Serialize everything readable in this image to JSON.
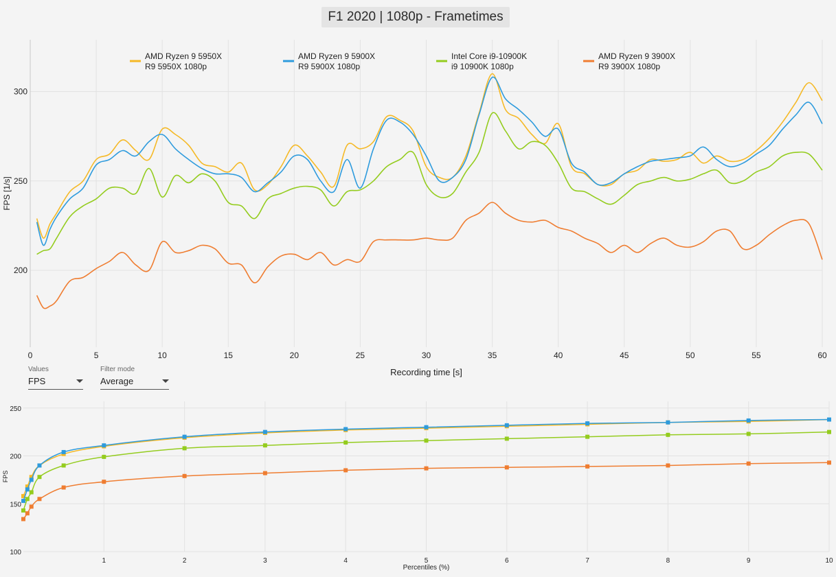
{
  "title": "F1 2020 | 1080p - Frametimes",
  "colors": {
    "gold": "#F5B926",
    "blue": "#2E9BDD",
    "green": "#94CC1E",
    "orange": "#EF7D31",
    "grid": "#e2e2e2"
  },
  "legend": [
    {
      "line1": "AMD Ryzen 9 5950X",
      "line2": "R9 5950X 1080p",
      "color": "#F5B926"
    },
    {
      "line1": "AMD Ryzen 9 5900X",
      "line2": "R9 5900X 1080p",
      "color": "#2E9BDD"
    },
    {
      "line1": "Intel Core i9-10900K",
      "line2": "i9 10900K 1080p",
      "color": "#94CC1E"
    },
    {
      "line1": "AMD Ryzen 9 3900X",
      "line2": "R9 3900X 1080p",
      "color": "#EF7D31"
    }
  ],
  "controls": {
    "values_label": "Values",
    "values_value": "FPS",
    "filter_label": "Filter mode",
    "filter_value": "Average"
  },
  "chart_data": [
    {
      "type": "line",
      "xlabel": "Recording time [s]",
      "ylabel": "FPS [1/s]",
      "xlim": [
        0,
        60
      ],
      "ylim": [
        157,
        329
      ],
      "xticks": [
        0,
        5,
        10,
        15,
        20,
        25,
        30,
        35,
        40,
        45,
        50,
        55,
        60
      ],
      "yticks": [
        200,
        250,
        300
      ],
      "series": [
        {
          "name": "AMD Ryzen 9 5950X",
          "color": "#F5B926",
          "x": [
            0.5,
            1,
            1.5,
            2,
            3,
            4,
            5,
            6,
            7,
            8,
            9,
            10,
            11,
            12,
            13,
            14,
            15,
            16,
            17,
            18,
            19,
            20,
            21,
            22,
            23,
            24,
            25,
            26,
            27,
            28,
            29,
            30,
            31,
            32,
            33,
            34,
            35,
            36,
            37,
            38,
            39,
            40,
            41,
            42,
            43,
            44,
            45,
            46,
            47,
            48,
            49,
            50,
            51,
            52,
            53,
            54,
            55,
            56,
            57,
            58,
            59,
            60
          ],
          "y": [
            229,
            218,
            226,
            232,
            244,
            250,
            262,
            265,
            273,
            267,
            262,
            279,
            276,
            270,
            260,
            258,
            255,
            260,
            245,
            248,
            258,
            270,
            264,
            255,
            247,
            270,
            268,
            272,
            286,
            284,
            278,
            258,
            252,
            252,
            264,
            288,
            310,
            290,
            285,
            276,
            271,
            282,
            258,
            254,
            248,
            248,
            254,
            256,
            262,
            261,
            262,
            266,
            260,
            264,
            261,
            262,
            267,
            274,
            283,
            294,
            305,
            295
          ]
        },
        {
          "name": "AMD Ryzen 9 5900X",
          "color": "#2E9BDD",
          "x": [
            0.5,
            1,
            1.5,
            2,
            3,
            4,
            5,
            6,
            7,
            8,
            9,
            10,
            11,
            12,
            13,
            14,
            15,
            16,
            17,
            18,
            19,
            20,
            21,
            22,
            23,
            24,
            25,
            26,
            27,
            28,
            29,
            30,
            31,
            32,
            33,
            34,
            35,
            36,
            37,
            38,
            39,
            40,
            41,
            42,
            43,
            44,
            45,
            46,
            47,
            48,
            49,
            50,
            51,
            52,
            53,
            54,
            55,
            56,
            57,
            58,
            59,
            60
          ],
          "y": [
            227,
            214,
            223,
            230,
            240,
            246,
            259,
            262,
            267,
            264,
            272,
            276,
            268,
            262,
            257,
            254,
            254,
            252,
            244,
            249,
            255,
            264,
            262,
            250,
            244,
            262,
            246,
            268,
            284,
            283,
            276,
            264,
            250,
            252,
            262,
            287,
            308,
            296,
            290,
            283,
            275,
            279,
            260,
            255,
            248,
            249,
            254,
            258,
            261,
            262,
            263,
            264,
            269,
            262,
            258,
            260,
            265,
            270,
            279,
            287,
            294,
            282
          ]
        },
        {
          "name": "Intel Core i9-10900K",
          "color": "#94CC1E",
          "x": [
            0.5,
            1,
            1.5,
            2,
            3,
            4,
            5,
            6,
            7,
            8,
            9,
            10,
            11,
            12,
            13,
            14,
            15,
            16,
            17,
            18,
            19,
            20,
            21,
            22,
            23,
            24,
            25,
            26,
            27,
            28,
            29,
            30,
            31,
            32,
            33,
            34,
            35,
            36,
            37,
            38,
            39,
            40,
            41,
            42,
            43,
            44,
            45,
            46,
            47,
            48,
            49,
            50,
            51,
            52,
            53,
            54,
            55,
            56,
            57,
            58,
            59,
            60
          ],
          "y": [
            209,
            211,
            212,
            218,
            230,
            236,
            240,
            246,
            246,
            243,
            257,
            241,
            253,
            249,
            254,
            250,
            238,
            236,
            229,
            240,
            243,
            246,
            247,
            245,
            236,
            244,
            245,
            250,
            258,
            262,
            266,
            248,
            241,
            243,
            255,
            266,
            288,
            278,
            268,
            272,
            270,
            260,
            246,
            244,
            240,
            237,
            242,
            248,
            250,
            252,
            250,
            251,
            254,
            256,
            249,
            250,
            255,
            258,
            264,
            266,
            265,
            256
          ]
        },
        {
          "name": "AMD Ryzen 9 3900X",
          "color": "#EF7D31",
          "x": [
            0.5,
            1,
            1.5,
            2,
            3,
            4,
            5,
            6,
            7,
            8,
            9,
            10,
            11,
            12,
            13,
            14,
            15,
            16,
            17,
            18,
            19,
            20,
            21,
            22,
            23,
            24,
            25,
            26,
            27,
            28,
            29,
            30,
            31,
            32,
            33,
            34,
            35,
            36,
            37,
            38,
            39,
            40,
            41,
            42,
            43,
            44,
            45,
            46,
            47,
            48,
            49,
            50,
            51,
            52,
            53,
            54,
            55,
            56,
            57,
            58,
            59,
            60
          ],
          "y": [
            186,
            179,
            180,
            183,
            194,
            196,
            201,
            205,
            210,
            203,
            200,
            216,
            210,
            211,
            214,
            212,
            204,
            203,
            193,
            202,
            208,
            209,
            206,
            210,
            203,
            206,
            205,
            216,
            217,
            217,
            217,
            218,
            217,
            218,
            228,
            232,
            238,
            232,
            228,
            227,
            228,
            224,
            222,
            218,
            215,
            210,
            214,
            210,
            215,
            218,
            214,
            213,
            216,
            222,
            222,
            212,
            214,
            220,
            225,
            228,
            226,
            206
          ]
        }
      ]
    },
    {
      "type": "line",
      "xlabel": "Percentiles (%)",
      "ylabel": "FPS",
      "xlim": [
        0,
        10
      ],
      "ylim": [
        100,
        257
      ],
      "xticks": [
        1,
        2,
        3,
        4,
        5,
        6,
        7,
        8,
        9,
        10
      ],
      "yticks": [
        100,
        150,
        200,
        250
      ],
      "series": [
        {
          "name": "AMD Ryzen 9 5950X",
          "color": "#F5B926",
          "x": [
            0,
            0.05,
            0.1,
            0.2,
            0.5,
            1,
            2,
            3,
            4,
            5,
            6,
            7,
            8,
            9,
            10
          ],
          "y": [
            158,
            168,
            178,
            190,
            202,
            210,
            219,
            224,
            227,
            229,
            231,
            233,
            235,
            236,
            238
          ]
        },
        {
          "name": "AMD Ryzen 9 5900X",
          "color": "#2E9BDD",
          "x": [
            0,
            0.05,
            0.1,
            0.2,
            0.5,
            1,
            2,
            3,
            4,
            5,
            6,
            7,
            8,
            9,
            10
          ],
          "y": [
            153,
            165,
            175,
            190,
            204,
            211,
            220,
            225,
            228,
            230,
            232,
            234,
            235,
            237,
            238
          ]
        },
        {
          "name": "Intel Core i9-10900K",
          "color": "#94CC1E",
          "x": [
            0,
            0.05,
            0.1,
            0.2,
            0.5,
            1,
            2,
            3,
            4,
            5,
            6,
            7,
            8,
            9,
            10
          ],
          "y": [
            143,
            155,
            162,
            178,
            190,
            199,
            208,
            211,
            214,
            216,
            218,
            220,
            222,
            223,
            225
          ]
        },
        {
          "name": "AMD Ryzen 9 3900X",
          "color": "#EF7D31",
          "x": [
            0,
            0.05,
            0.1,
            0.2,
            0.5,
            1,
            2,
            3,
            4,
            5,
            6,
            7,
            8,
            9,
            10
          ],
          "y": [
            134,
            140,
            147,
            155,
            167,
            173,
            179,
            182,
            185,
            187,
            188,
            189,
            190,
            192,
            193
          ]
        }
      ]
    }
  ]
}
